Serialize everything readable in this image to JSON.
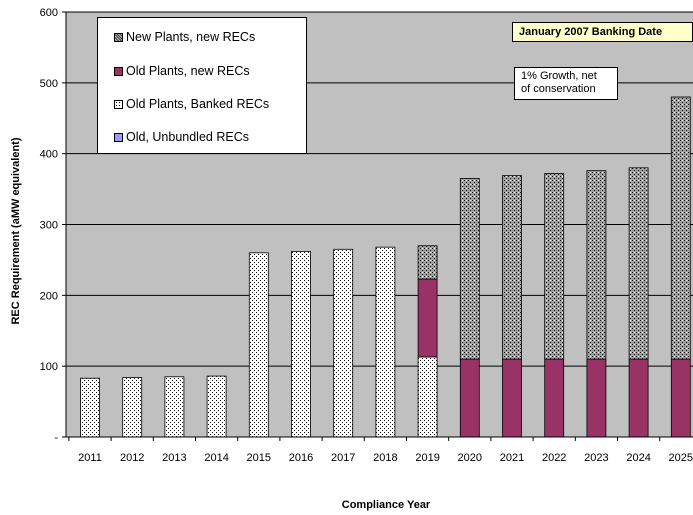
{
  "chart_data": {
    "type": "bar",
    "stacked": true,
    "categories": [
      "2011",
      "2012",
      "2013",
      "2014",
      "2015",
      "2016",
      "2017",
      "2018",
      "2019",
      "2020",
      "2021",
      "2022",
      "2023",
      "2024",
      "2025"
    ],
    "series": [
      {
        "name": "Old, Unbundled RECs",
        "color": "#9999ff",
        "pattern": "solid",
        "values": [
          0,
          0,
          0,
          0,
          0,
          0,
          0,
          0,
          0,
          0,
          0,
          0,
          0,
          0,
          0
        ]
      },
      {
        "name": "Old Plants, Banked RECs",
        "color": "#ffffff",
        "pattern": "dots",
        "values": [
          83,
          84,
          85,
          86,
          260,
          262,
          265,
          268,
          113,
          0,
          0,
          0,
          0,
          0,
          0
        ]
      },
      {
        "name": "Old Plants, new RECs",
        "color": "#993366",
        "pattern": "solid",
        "values": [
          0,
          0,
          0,
          0,
          0,
          0,
          0,
          0,
          110,
          110,
          110,
          110,
          110,
          110,
          110
        ]
      },
      {
        "name": "New Plants, new RECs",
        "color": "#c0c0c0",
        "pattern": "crosshatch",
        "values": [
          0,
          0,
          0,
          0,
          0,
          0,
          0,
          0,
          47,
          255,
          259,
          262,
          266,
          270,
          370
        ]
      }
    ],
    "legend_order": [
      "New Plants, new RECs",
      "Old Plants, new RECs",
      "Old Plants, Banked RECs",
      "Old, Unbundled RECs"
    ],
    "title": "",
    "xlabel": "Compliance Year",
    "ylabel": "REC Requirement (aMW equivalent)",
    "ylim": [
      0,
      600
    ],
    "yticks": [
      {
        "value": 0,
        "label": "-"
      },
      {
        "value": 100,
        "label": "100"
      },
      {
        "value": 200,
        "label": "200"
      },
      {
        "value": 300,
        "label": "300"
      },
      {
        "value": 400,
        "label": "400"
      },
      {
        "value": 500,
        "label": "500"
      },
      {
        "value": 600,
        "label": "600"
      }
    ],
    "grid": true,
    "plot_background": "#c0c0c0",
    "legend_placement": "top-left",
    "annotations": [
      {
        "id": "banking-date",
        "text": "January 2007 Banking Date"
      },
      {
        "id": "growth-note",
        "lines": [
          "1% Growth, net",
          "of conservation"
        ]
      }
    ]
  }
}
